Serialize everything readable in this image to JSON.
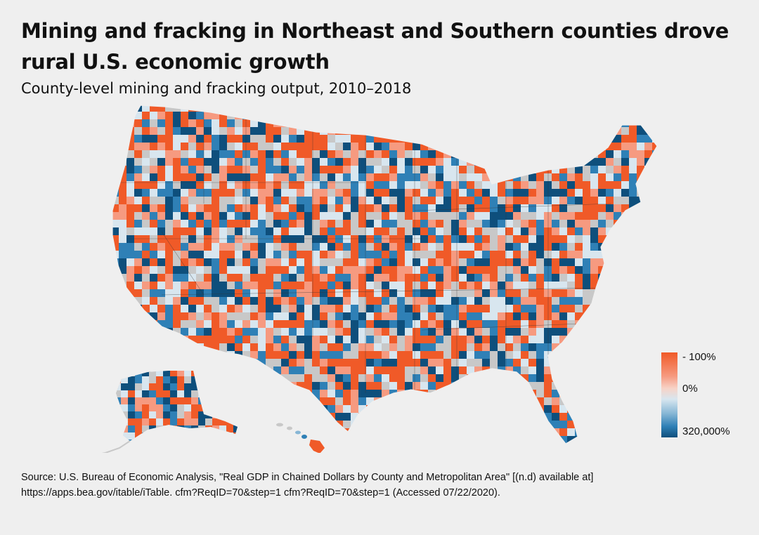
{
  "header": {
    "title": "Mining and fracking in Northeast and Southern counties drove rural U.S. economic growth",
    "subtitle": "County-level mining and fracking output, 2010–2018"
  },
  "legend": {
    "top_label": "- 100%",
    "mid_label": "0%",
    "bottom_label": "320,000%",
    "colors": {
      "high_decline": "#f05a28",
      "mild_decline": "#f69a80",
      "neutral": "#d8e6ef",
      "growth": "#2f80b6",
      "high_growth": "#0e4f7c",
      "no_data": "#c8c8c8"
    }
  },
  "footer": {
    "source_line1": "Source: U.S. Bureau of Economic Analysis, \"Real GDP in Chained Dollars by County and Metropolitan Area\" [(n.d) available at]",
    "source_line2": "https://apps.bea.gov/itable/iTable. cfm?ReqID=70&step=1 cfm?ReqID=70&step=1 (Accessed 07/22/2020)."
  }
}
